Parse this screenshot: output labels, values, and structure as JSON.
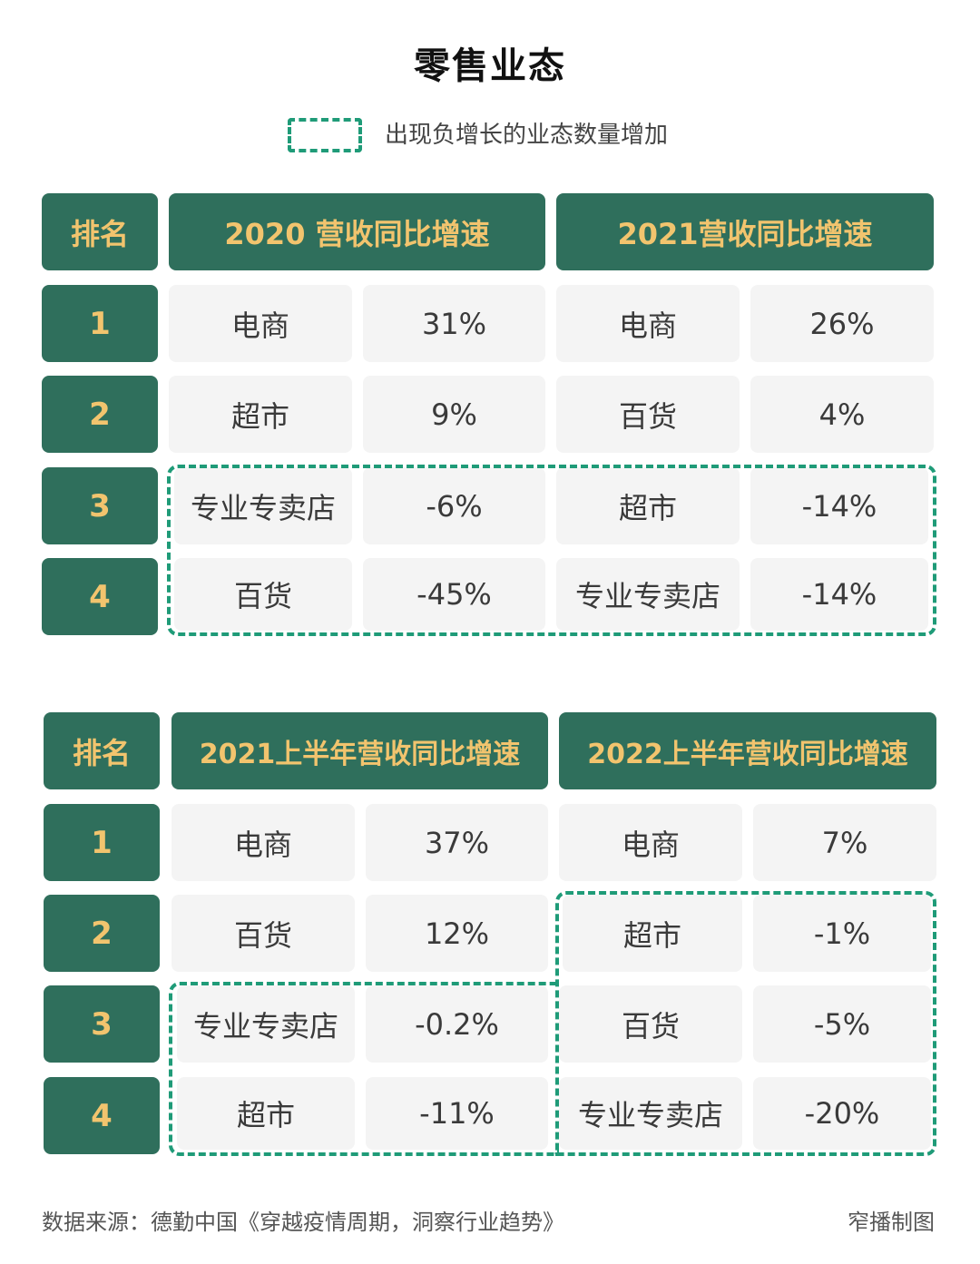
{
  "title": "零售业态",
  "legend": {
    "label": "出现负增长的业态数量增加",
    "color": "#1f9b78"
  },
  "colors": {
    "header_bg": "#2f6f5c",
    "header_text": "#f2c46e",
    "cell_bg": "#f4f4f4"
  },
  "chart_data": [
    {
      "type": "table",
      "columns": [
        "排名",
        "2020 营收同比增速",
        "2021营收同比增速"
      ],
      "rows": [
        {
          "rank": "1",
          "a_name": "电商",
          "a_val": "31%",
          "b_name": "电商",
          "b_val": "26%"
        },
        {
          "rank": "2",
          "a_name": "超市",
          "a_val": "9%",
          "b_name": "百货",
          "b_val": "4%"
        },
        {
          "rank": "3",
          "a_name": "专业专卖店",
          "a_val": "-6%",
          "b_name": "超市",
          "b_val": "-14%"
        },
        {
          "rank": "4",
          "a_name": "百货",
          "a_val": "-45%",
          "b_name": "专业专卖店",
          "b_val": "-14%"
        }
      ]
    },
    {
      "type": "table",
      "columns": [
        "排名",
        "2021上半年营收同比增速",
        "2022上半年营收同比增速"
      ],
      "rows": [
        {
          "rank": "1",
          "a_name": "电商",
          "a_val": "37%",
          "b_name": "电商",
          "b_val": "7%"
        },
        {
          "rank": "2",
          "a_name": "百货",
          "a_val": "12%",
          "b_name": "超市",
          "b_val": "-1%"
        },
        {
          "rank": "3",
          "a_name": "专业专卖店",
          "a_val": "-0.2%",
          "b_name": "百货",
          "b_val": "-5%"
        },
        {
          "rank": "4",
          "a_name": "超市",
          "a_val": "-11%",
          "b_name": "专业专卖店",
          "b_val": "-20%"
        }
      ]
    }
  ],
  "footer": {
    "source": "数据来源：德勤中国《穿越疫情周期，洞察行业趋势》",
    "credit": "窄播制图"
  }
}
